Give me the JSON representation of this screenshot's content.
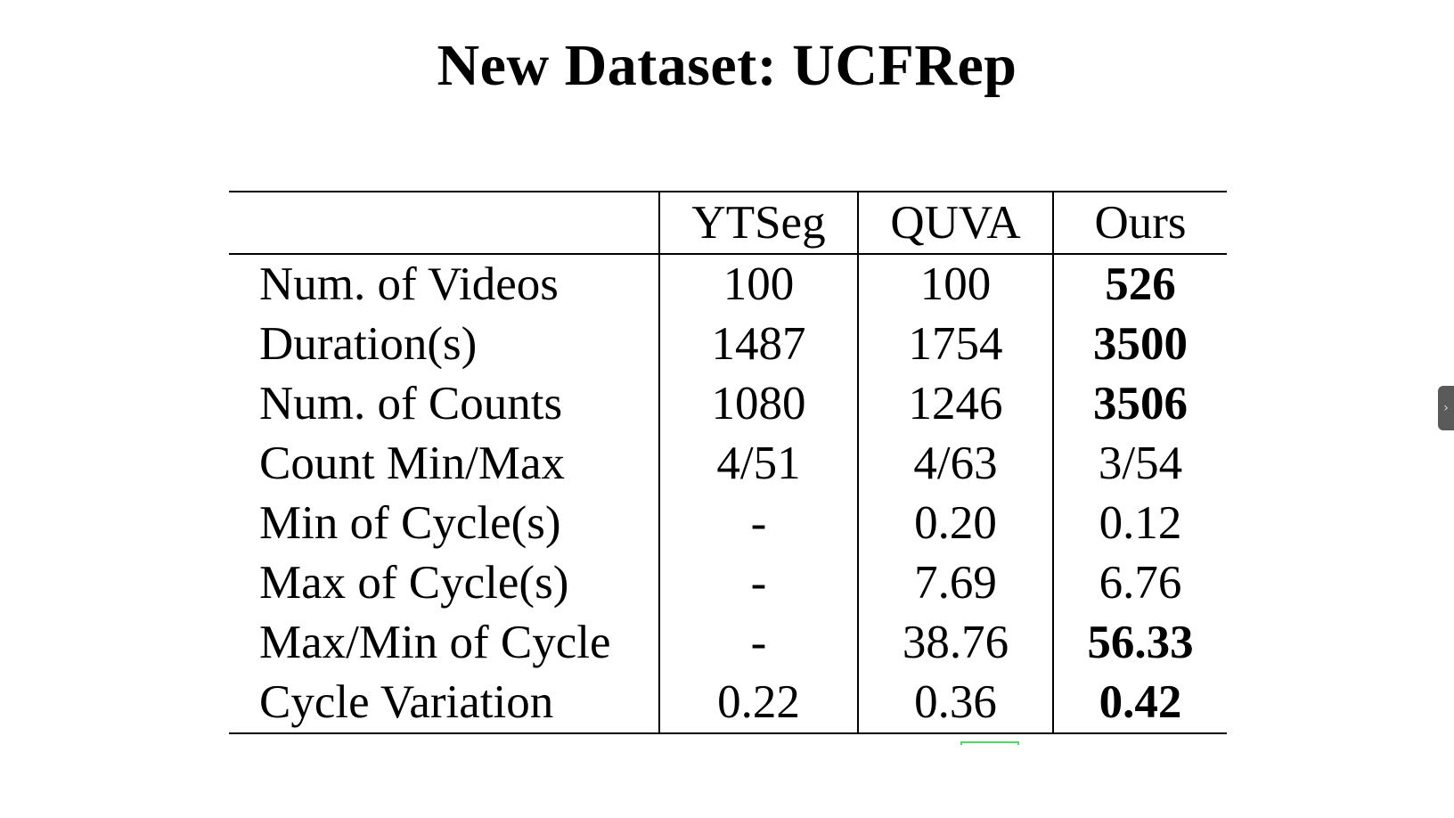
{
  "title": "New Dataset: UCFRep",
  "table": {
    "columns": [
      "",
      "YTSeg",
      "QUVA",
      "Ours"
    ],
    "rows": [
      {
        "label": "Num. of Videos",
        "ytseg": "100",
        "quva": "100",
        "ours": "526",
        "ours_bold": true
      },
      {
        "label": "Duration(s)",
        "ytseg": "1487",
        "quva": "1754",
        "ours": "3500",
        "ours_bold": true
      },
      {
        "label": "Num. of Counts",
        "ytseg": "1080",
        "quva": "1246",
        "ours": "3506",
        "ours_bold": true
      },
      {
        "label": "Count Min/Max",
        "ytseg": "4/51",
        "quva": "4/63",
        "ours": "3/54",
        "ours_bold": false
      },
      {
        "label": "Min of Cycle(s)",
        "ytseg": "-",
        "quva": "0.20",
        "ours": "0.12",
        "ours_bold": false
      },
      {
        "label": "Max of Cycle(s)",
        "ytseg": "-",
        "quva": "7.69",
        "ours": "6.76",
        "ours_bold": false
      },
      {
        "label": "Max/Min of Cycle",
        "ytseg": "-",
        "quva": "38.76",
        "ours": "56.33",
        "ours_bold": true
      },
      {
        "label": "Cycle Variation",
        "ytseg": "0.22",
        "quva": "0.36",
        "ours": "0.42",
        "ours_bold": true
      }
    ]
  },
  "side_tab": {
    "icon": "chevron-right-icon",
    "glyph": "›"
  }
}
